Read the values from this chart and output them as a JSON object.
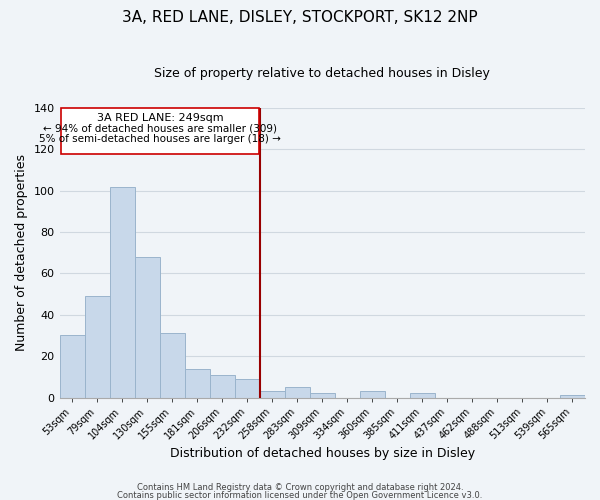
{
  "title": "3A, RED LANE, DISLEY, STOCKPORT, SK12 2NP",
  "subtitle": "Size of property relative to detached houses in Disley",
  "xlabel": "Distribution of detached houses by size in Disley",
  "ylabel": "Number of detached properties",
  "bar_color": "#c8d8ea",
  "bar_edge_color": "#9ab4cc",
  "bins": [
    "53sqm",
    "79sqm",
    "104sqm",
    "130sqm",
    "155sqm",
    "181sqm",
    "206sqm",
    "232sqm",
    "258sqm",
    "283sqm",
    "309sqm",
    "334sqm",
    "360sqm",
    "385sqm",
    "411sqm",
    "437sqm",
    "462sqm",
    "488sqm",
    "513sqm",
    "539sqm",
    "565sqm"
  ],
  "values": [
    30,
    49,
    102,
    68,
    31,
    14,
    11,
    9,
    3,
    5,
    2,
    0,
    3,
    0,
    2,
    0,
    0,
    0,
    0,
    0,
    1
  ],
  "ylim": [
    0,
    140
  ],
  "yticks": [
    0,
    20,
    40,
    60,
    80,
    100,
    120,
    140
  ],
  "vline_x": 7.5,
  "vline_color": "#990000",
  "annotation_title": "3A RED LANE: 249sqm",
  "annotation_line1": "← 94% of detached houses are smaller (309)",
  "annotation_line2": "5% of semi-detached houses are larger (18) →",
  "footer_line1": "Contains HM Land Registry data © Crown copyright and database right 2024.",
  "footer_line2": "Contains public sector information licensed under the Open Government Licence v3.0.",
  "background_color": "#f0f4f8"
}
